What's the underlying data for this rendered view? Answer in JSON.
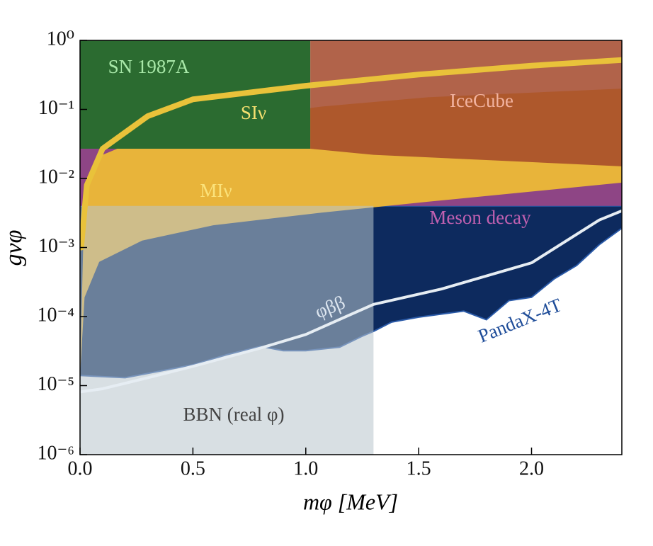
{
  "chart_data": {
    "type": "region",
    "x_label": "mφ [MeV]",
    "y_label": "gνφ",
    "xlim": [
      0,
      2.4
    ],
    "ylim": [
      1e-06,
      1
    ],
    "log_y": true,
    "xticks": [
      {
        "value": 0,
        "label": "0.0"
      },
      0.5,
      {
        "value": 1,
        "label": "1.0"
      },
      1.5,
      {
        "value": 2,
        "label": "2.0"
      }
    ],
    "yticks": [
      {
        "value": 1e-06,
        "label": "10⁻⁶"
      },
      {
        "value": 1e-05,
        "label": "10⁻⁵"
      },
      {
        "value": 0.0001,
        "label": "10⁻⁴"
      },
      {
        "value": 0.001,
        "label": "10⁻³"
      },
      {
        "value": 0.01,
        "label": "10⁻²"
      },
      {
        "value": 0.1,
        "label": "10⁻¹"
      },
      {
        "value": 1,
        "label": "10⁰"
      }
    ],
    "regions": [
      {
        "name": "PandaX-4T",
        "color": "#0d2a5e",
        "label_color": "#1f4d99",
        "x": [
          0,
          0.2,
          0.5,
          0.65,
          0.8,
          0.9,
          1.0,
          1.15,
          1.25,
          1.3,
          1.38,
          1.5,
          1.7,
          1.8,
          1.9,
          2.0,
          2.1,
          2.2,
          2.3,
          2.4
        ],
        "upper": [
          0.004,
          0.004,
          0.004,
          0.004,
          0.004,
          0.004,
          0.004,
          0.004,
          0.004,
          0.004,
          0.004,
          0.004,
          0.004,
          0.004,
          0.004,
          0.004,
          0.004,
          0.004,
          0.004,
          0.004
        ],
        "lower": [
          1.4e-05,
          1.3e-05,
          2e-05,
          2.8e-05,
          3.7e-05,
          3.2e-05,
          3.2e-05,
          3.6e-05,
          5.2e-05,
          6.1e-05,
          8.3e-05,
          9.8e-05,
          0.00012,
          9e-05,
          0.00017,
          0.00019,
          0.00035,
          0.00055,
          0.0011,
          0.0019
        ]
      },
      {
        "name": "Meson decay",
        "color": "#8e4585",
        "label_color": "#c060b0",
        "x": [
          0,
          2.4
        ],
        "upper": [
          0.027,
          0.027
        ],
        "lower": [
          0.004,
          0.004
        ]
      },
      {
        "name": "MIν",
        "color": "#e8b43a",
        "label_color": "#fbe27a",
        "x": [
          0,
          0.02,
          0.085,
          0.275,
          0.59,
          1.07,
          1.54,
          2.4
        ],
        "upper": [
          1.4e-05,
          0.0066,
          0.021,
          0.038,
          0.069,
          0.11,
          0.15,
          0.2
        ],
        "lower": [
          1.4e-05,
          0.00019,
          0.00062,
          0.00126,
          0.0021,
          0.0032,
          0.0046,
          0.0087
        ]
      },
      {
        "name": "SN 1987A",
        "color": "#2b6b30",
        "label_color": "#a8e8a8",
        "x": [
          0,
          1.02
        ],
        "upper": [
          1,
          1
        ],
        "lower": [
          0.027,
          0.027
        ]
      },
      {
        "name": "IceCube",
        "color": "#a3482a",
        "label_color": "#f2b3a0",
        "x": [
          1.02,
          1.3,
          2.4
        ],
        "upper": [
          1,
          1,
          1
        ],
        "lower": [
          0.027,
          0.022,
          0.015
        ]
      },
      {
        "name": "BBN (real φ)",
        "color": "#b8c4cc",
        "label_color": "#444444",
        "x": [
          0,
          1.3
        ],
        "upper": [
          0.004,
          0.004
        ],
        "lower": [
          1e-06,
          1e-06
        ]
      }
    ],
    "series": [
      {
        "name": "SIν",
        "color": "#e9c23a",
        "label_color": "#f5e070",
        "x": [
          0.005,
          0.03,
          0.1,
          0.3,
          0.5,
          1.0,
          1.5,
          2.0,
          2.4
        ],
        "values": [
          0.001,
          0.008,
          0.027,
          0.08,
          0.14,
          0.22,
          0.32,
          0.43,
          0.52
        ]
      },
      {
        "name": "φββ",
        "color": "#e6edf3",
        "label_color": "#dde6f0",
        "x": [
          0,
          0.1,
          0.3,
          0.5,
          0.8,
          1.0,
          1.3,
          1.6,
          2.0,
          2.3,
          2.4
        ],
        "values": [
          8.1e-06,
          9e-06,
          1.3e-05,
          1.9e-05,
          3.5e-05,
          5.5e-05,
          0.00015,
          0.00025,
          0.0006,
          0.0025,
          0.0034
        ]
      }
    ]
  }
}
